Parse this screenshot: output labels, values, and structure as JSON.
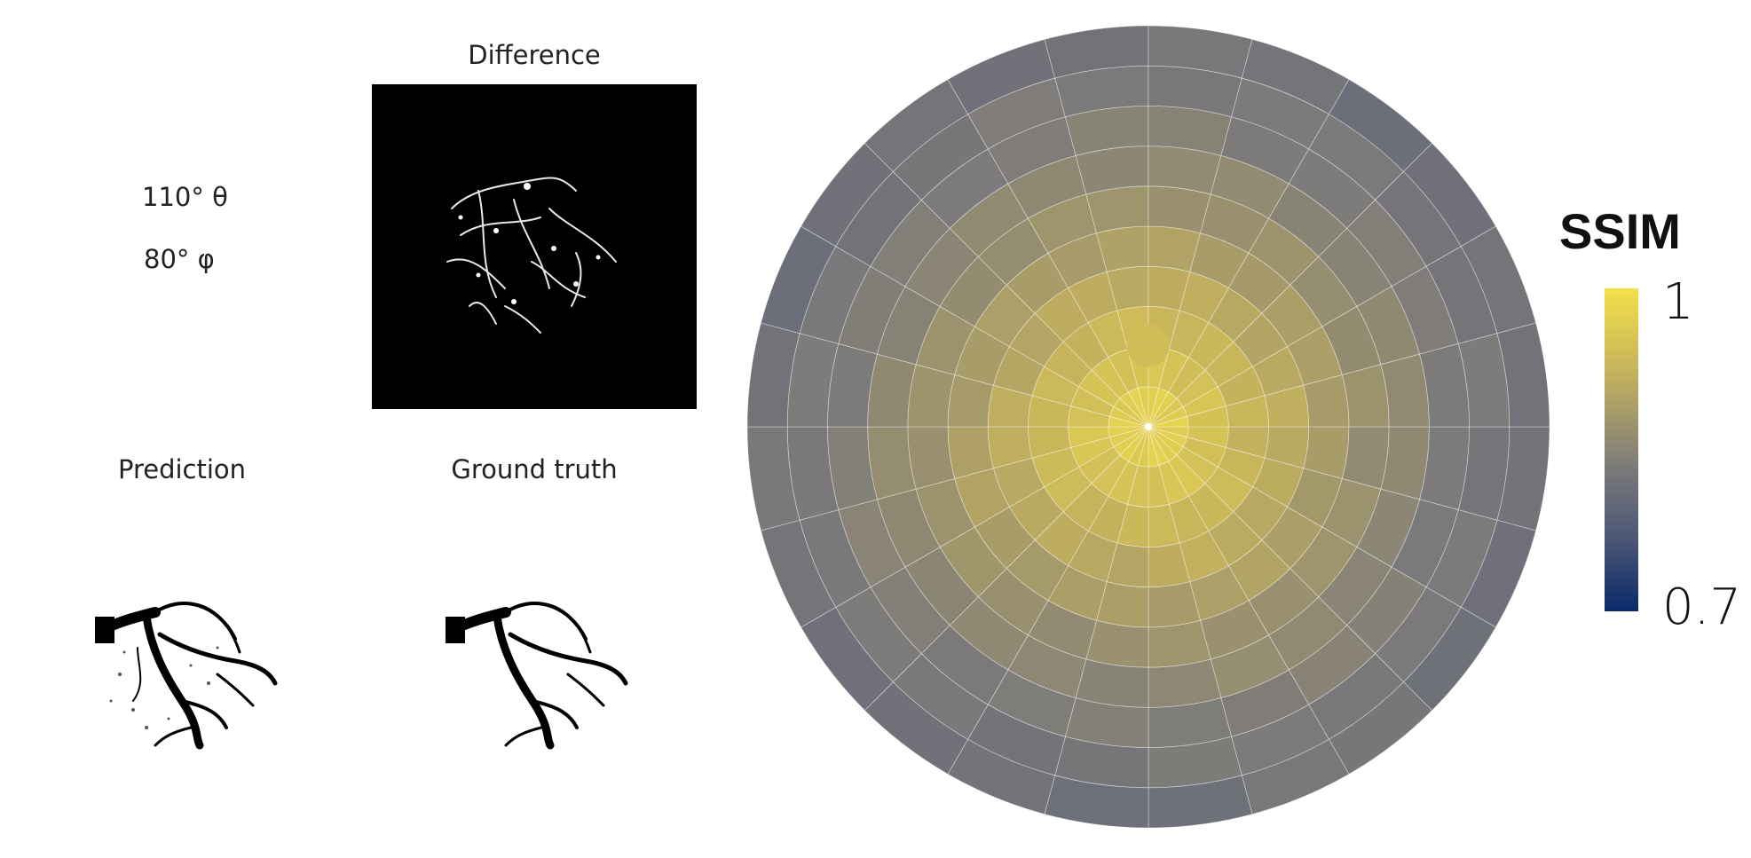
{
  "view": {
    "theta_label": "110° θ",
    "phi_label": "80° φ",
    "difference_title": "Difference",
    "prediction_title": "Prediction",
    "ground_truth_title": "Ground truth"
  },
  "colorbar": {
    "title": "SSIM",
    "max_label": "1",
    "min_label": "0.7",
    "colors": {
      "high": "#f3e04a",
      "mid": "#7d7b7a",
      "low": "#0a2a68"
    }
  },
  "chart_data": {
    "type": "heatmap",
    "projection": "polar",
    "metric": "SSIM",
    "color_range": [
      0.7,
      1.0
    ],
    "ring_values": [
      0.97,
      0.95,
      0.93,
      0.91,
      0.89,
      0.87,
      0.855,
      0.84,
      0.83,
      0.82
    ],
    "sector_count": 24,
    "grid": true,
    "highlight_point": {
      "theta_deg": 110,
      "phi_deg": 80,
      "ssim": 0.94
    }
  }
}
